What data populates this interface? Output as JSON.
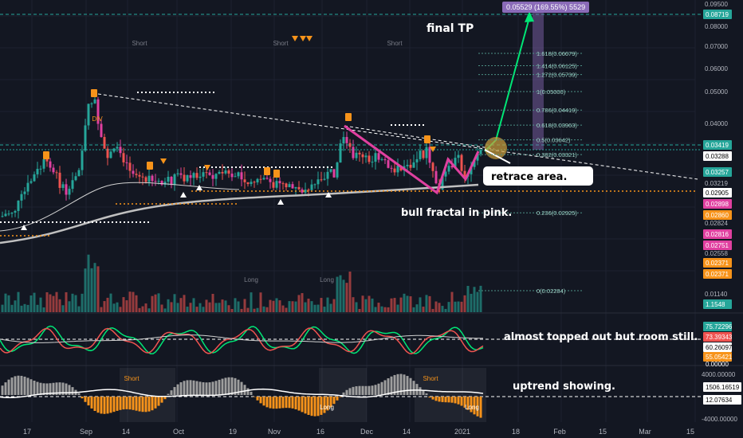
{
  "annotations": {
    "final_tp": "final TP",
    "retrace": "retrace area.",
    "bull_fractal": "bull fractal in pink.",
    "rsi_note": "almost topped out but room still.",
    "macd_note": "uptrend showing."
  },
  "target_badge": "0.05529 (169.55%) 5529",
  "colors": {
    "background": "#131722",
    "up": "#26a69a",
    "down": "#ef5350",
    "fractal": "#e040a0",
    "target_arrow": "#00e676",
    "trend_dotted": "#ffffff",
    "ma_line": "#c0c0c0",
    "orange": "#f7931a"
  },
  "chart_data": {
    "type": "candlestick",
    "x_ticks": [
      "17",
      "Sep",
      "14",
      "Oct",
      "19",
      "Nov",
      "16",
      "Dec",
      "14",
      "2021",
      "18",
      "Feb",
      "15",
      "Mar",
      "15"
    ],
    "price_axis_labels": [
      "0.09500",
      "0.08000",
      "0.07000",
      "0.06000",
      "0.05000",
      "0.04000",
      "0.03288",
      "0.03219",
      "0.02824",
      "0.02558"
    ],
    "price_badges": [
      {
        "label": "0.08719",
        "color": "#26a69a"
      },
      {
        "label": "0.03419",
        "color": "#26a69a"
      },
      {
        "label": "0.03288",
        "color": "#ffffff"
      },
      {
        "label": "0.03257",
        "color": "#26a69a"
      },
      {
        "label": "0.02905",
        "color": "#ffffff"
      },
      {
        "label": "0.02898",
        "color": "#e040a0"
      },
      {
        "label": "0.02860",
        "color": "#f7931a"
      },
      {
        "label": "0.02816",
        "color": "#e040a0"
      },
      {
        "label": "0.02751",
        "color": "#e040a0"
      },
      {
        "label": "0.02371",
        "color": "#f7931a"
      },
      {
        "label": "0.02371",
        "color": "#f7931a"
      }
    ],
    "fib_levels": [
      {
        "label": "1.618(0.06679)",
        "value": 0.06679
      },
      {
        "label": "1.414(0.06125)",
        "value": 0.06125
      },
      {
        "label": "1.272(0.05739)",
        "value": 0.05739
      },
      {
        "label": "1(0.05000)",
        "value": 0.05
      },
      {
        "label": "0.786(0.04419)",
        "value": 0.04419
      },
      {
        "label": "0.618(0.03963)",
        "value": 0.03963
      },
      {
        "label": "0.5(0.03642)",
        "value": 0.03642
      },
      {
        "label": "0.382(0.03321)",
        "value": 0.03321
      },
      {
        "label": "0.236(0.02925)",
        "value": 0.02925
      },
      {
        "label": "0(0.02284)",
        "value": 0.02284
      }
    ],
    "signals": [
      "Short",
      "Short",
      "Short",
      "Long",
      "Long"
    ],
    "divergence_label": "DIV",
    "volume_labels": [
      "0.01140",
      "1.1548"
    ],
    "rsi_labels": [
      "75.72296",
      "73.39343",
      "60.26097",
      "55.05421",
      "0.00000"
    ],
    "macd_labels": [
      "4000.00000",
      "1506.16519",
      "12.07634",
      "-4000.00000"
    ],
    "macd_signals": [
      "Short",
      "Short",
      "Long",
      "Long"
    ]
  }
}
